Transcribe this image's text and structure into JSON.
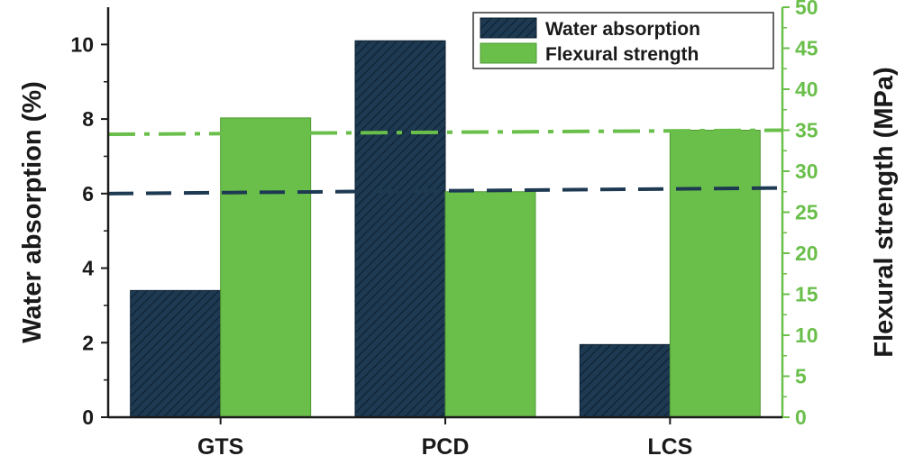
{
  "chart_data": {
    "type": "bar",
    "title": "",
    "categories": [
      "GTS",
      "PCD",
      "LCS"
    ],
    "series": [
      {
        "name": "Water absorption",
        "axis": "left",
        "values": [
          3.4,
          10.1,
          1.95
        ],
        "color": "#1d3a52",
        "pattern": "diagonal-hatch"
      },
      {
        "name": "Flexural strength",
        "axis": "right",
        "values": [
          36.5,
          27.5,
          35.0
        ],
        "color": "#6abf4b"
      }
    ],
    "ylabel": "Water absorption (%)",
    "ylabel_right": "Flexural strength (MPa)",
    "ylim": [
      0,
      11
    ],
    "ylim_right": [
      0,
      50
    ],
    "yticks": [
      0,
      2,
      4,
      6,
      8,
      10
    ],
    "yticks_right": [
      0,
      5,
      10,
      15,
      20,
      25,
      30,
      35,
      40,
      45,
      50
    ],
    "reference_lines": [
      {
        "axis": "left",
        "value_start": 6.0,
        "value_end": 6.15,
        "style": "dashed",
        "color": "#1d3a52"
      },
      {
        "axis": "right",
        "value_start": 34.5,
        "value_end": 35.0,
        "style": "dash-dot",
        "color": "#6abf4b"
      }
    ],
    "legend": {
      "position": "top-right"
    },
    "grid": false,
    "axis_colors": {
      "left": "#1a1a1a",
      "right": "#6abf4b"
    }
  }
}
